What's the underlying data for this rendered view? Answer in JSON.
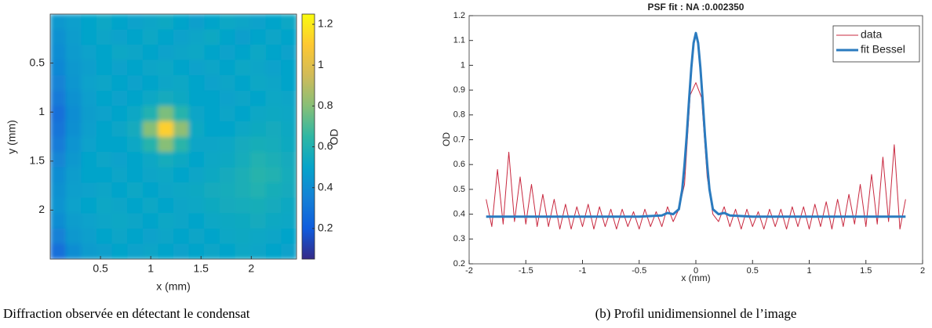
{
  "chart_data": [
    {
      "type": "heatmap",
      "xlabel": "x (mm)",
      "ylabel": "y (mm)",
      "colorbar_label": "OD",
      "caption": "Diffraction observée en détectant le condensat",
      "xlim": [
        0,
        2.45
      ],
      "ylim": [
        2.5,
        0
      ],
      "xticks": [
        0.5,
        1,
        1.5,
        2
      ],
      "yticks": [
        0.5,
        1,
        1.5,
        2
      ],
      "clim": [
        0.05,
        1.25
      ],
      "cticks": [
        0.2,
        0.4,
        0.6,
        0.8,
        1,
        1.2
      ],
      "colormap": [
        "#352a87",
        "#0f5cdd",
        "#1481d6",
        "#06a4ca",
        "#2eb7a4",
        "#87bf77",
        "#d1bb59",
        "#fec832",
        "#f9fb0e"
      ],
      "z": [
        [
          0.45,
          0.48,
          0.5,
          0.52,
          0.5,
          0.49,
          0.51,
          0.53,
          0.5,
          0.48,
          0.5,
          0.52,
          0.51,
          0.49,
          0.5,
          0.52
        ],
        [
          0.42,
          0.47,
          0.5,
          0.51,
          0.49,
          0.5,
          0.52,
          0.5,
          0.49,
          0.51,
          0.53,
          0.5,
          0.48,
          0.5,
          0.51,
          0.5
        ],
        [
          0.4,
          0.46,
          0.49,
          0.5,
          0.52,
          0.51,
          0.5,
          0.49,
          0.51,
          0.52,
          0.5,
          0.49,
          0.5,
          0.52,
          0.5,
          0.49
        ],
        [
          0.38,
          0.45,
          0.48,
          0.5,
          0.49,
          0.5,
          0.51,
          0.52,
          0.5,
          0.49,
          0.51,
          0.5,
          0.52,
          0.51,
          0.49,
          0.5
        ],
        [
          0.36,
          0.44,
          0.49,
          0.51,
          0.5,
          0.49,
          0.5,
          0.51,
          0.52,
          0.5,
          0.49,
          0.51,
          0.5,
          0.52,
          0.51,
          0.5
        ],
        [
          0.32,
          0.42,
          0.48,
          0.5,
          0.49,
          0.5,
          0.52,
          0.55,
          0.53,
          0.5,
          0.5,
          0.49,
          0.51,
          0.5,
          0.52,
          0.51
        ],
        [
          0.28,
          0.4,
          0.47,
          0.49,
          0.5,
          0.52,
          0.6,
          0.78,
          0.62,
          0.51,
          0.5,
          0.51,
          0.5,
          0.52,
          0.53,
          0.52
        ],
        [
          0.3,
          0.41,
          0.48,
          0.5,
          0.51,
          0.55,
          0.8,
          1.12,
          0.82,
          0.53,
          0.5,
          0.5,
          0.52,
          0.54,
          0.55,
          0.53
        ],
        [
          0.33,
          0.43,
          0.49,
          0.5,
          0.5,
          0.52,
          0.62,
          0.8,
          0.63,
          0.51,
          0.51,
          0.52,
          0.55,
          0.57,
          0.56,
          0.54
        ],
        [
          0.37,
          0.45,
          0.5,
          0.51,
          0.49,
          0.5,
          0.52,
          0.56,
          0.53,
          0.5,
          0.52,
          0.53,
          0.56,
          0.6,
          0.58,
          0.55
        ],
        [
          0.4,
          0.47,
          0.5,
          0.5,
          0.51,
          0.5,
          0.51,
          0.52,
          0.5,
          0.51,
          0.53,
          0.55,
          0.58,
          0.62,
          0.6,
          0.56
        ],
        [
          0.42,
          0.48,
          0.49,
          0.51,
          0.5,
          0.52,
          0.5,
          0.51,
          0.52,
          0.53,
          0.55,
          0.56,
          0.58,
          0.6,
          0.57,
          0.55
        ],
        [
          0.43,
          0.49,
          0.5,
          0.52,
          0.51,
          0.5,
          0.52,
          0.5,
          0.51,
          0.52,
          0.54,
          0.55,
          0.56,
          0.57,
          0.55,
          0.53
        ],
        [
          0.4,
          0.47,
          0.49,
          0.51,
          0.52,
          0.51,
          0.5,
          0.52,
          0.51,
          0.5,
          0.52,
          0.53,
          0.54,
          0.55,
          0.53,
          0.52
        ],
        [
          0.35,
          0.45,
          0.48,
          0.5,
          0.51,
          0.5,
          0.49,
          0.51,
          0.5,
          0.51,
          0.5,
          0.52,
          0.53,
          0.52,
          0.51,
          0.5
        ],
        [
          0.28,
          0.4,
          0.46,
          0.48,
          0.5,
          0.49,
          0.51,
          0.5,
          0.49,
          0.5,
          0.51,
          0.5,
          0.52,
          0.51,
          0.5,
          0.49
        ]
      ]
    },
    {
      "type": "line",
      "title": "PSF fit : NA :0.002350",
      "xlabel": "x (mm)",
      "ylabel": "OD",
      "caption": "(b) Profil unidimensionnel de l’image",
      "xlim": [
        -2,
        2
      ],
      "ylim": [
        0.2,
        1.2
      ],
      "xticks": [
        -2,
        -1.5,
        -1,
        -0.5,
        0,
        0.5,
        1,
        1.5,
        2
      ],
      "yticks": [
        0.2,
        0.3,
        0.4,
        0.5,
        0.6,
        0.7,
        0.8,
        0.9,
        1,
        1.1,
        1.2
      ],
      "legend": "upper right",
      "series": [
        {
          "name": "data",
          "color": "#c8283f",
          "width": 1,
          "x": [
            -1.85,
            -1.8,
            -1.75,
            -1.7,
            -1.65,
            -1.6,
            -1.55,
            -1.5,
            -1.45,
            -1.4,
            -1.35,
            -1.3,
            -1.25,
            -1.2,
            -1.15,
            -1.1,
            -1.05,
            -1,
            -0.95,
            -0.9,
            -0.85,
            -0.8,
            -0.75,
            -0.7,
            -0.65,
            -0.6,
            -0.55,
            -0.5,
            -0.45,
            -0.4,
            -0.35,
            -0.3,
            -0.25,
            -0.2,
            -0.15,
            -0.1,
            -0.05,
            0,
            0.05,
            0.1,
            0.15,
            0.2,
            0.25,
            0.3,
            0.35,
            0.4,
            0.45,
            0.5,
            0.55,
            0.6,
            0.65,
            0.7,
            0.75,
            0.8,
            0.85,
            0.9,
            0.95,
            1,
            1.05,
            1.1,
            1.15,
            1.2,
            1.25,
            1.3,
            1.35,
            1.4,
            1.45,
            1.5,
            1.55,
            1.6,
            1.65,
            1.7,
            1.75,
            1.8,
            1.85
          ],
          "values": [
            0.46,
            0.35,
            0.58,
            0.36,
            0.65,
            0.37,
            0.55,
            0.36,
            0.52,
            0.35,
            0.48,
            0.35,
            0.46,
            0.34,
            0.44,
            0.34,
            0.43,
            0.35,
            0.44,
            0.34,
            0.43,
            0.35,
            0.42,
            0.34,
            0.42,
            0.35,
            0.41,
            0.34,
            0.42,
            0.35,
            0.41,
            0.35,
            0.43,
            0.37,
            0.42,
            0.52,
            0.88,
            0.93,
            0.87,
            0.55,
            0.4,
            0.37,
            0.43,
            0.35,
            0.42,
            0.34,
            0.42,
            0.35,
            0.41,
            0.34,
            0.42,
            0.35,
            0.42,
            0.34,
            0.43,
            0.35,
            0.43,
            0.34,
            0.44,
            0.35,
            0.45,
            0.34,
            0.46,
            0.35,
            0.48,
            0.36,
            0.52,
            0.35,
            0.56,
            0.36,
            0.63,
            0.37,
            0.68,
            0.34,
            0.46
          ]
        },
        {
          "name": "fit Bessel",
          "color": "#2b7bbf",
          "width": 3,
          "x": [
            -1.85,
            -1,
            -0.5,
            -0.3,
            -0.25,
            -0.2,
            -0.15,
            -0.12,
            -0.1,
            -0.08,
            -0.06,
            -0.04,
            -0.02,
            0,
            0.02,
            0.04,
            0.06,
            0.08,
            0.1,
            0.12,
            0.15,
            0.2,
            0.25,
            0.3,
            0.5,
            1,
            1.85
          ],
          "values": [
            0.39,
            0.39,
            0.39,
            0.395,
            0.405,
            0.4,
            0.42,
            0.5,
            0.6,
            0.72,
            0.86,
            0.99,
            1.09,
            1.13,
            1.09,
            0.99,
            0.86,
            0.72,
            0.6,
            0.5,
            0.42,
            0.4,
            0.405,
            0.395,
            0.39,
            0.39,
            0.39
          ]
        }
      ]
    }
  ]
}
